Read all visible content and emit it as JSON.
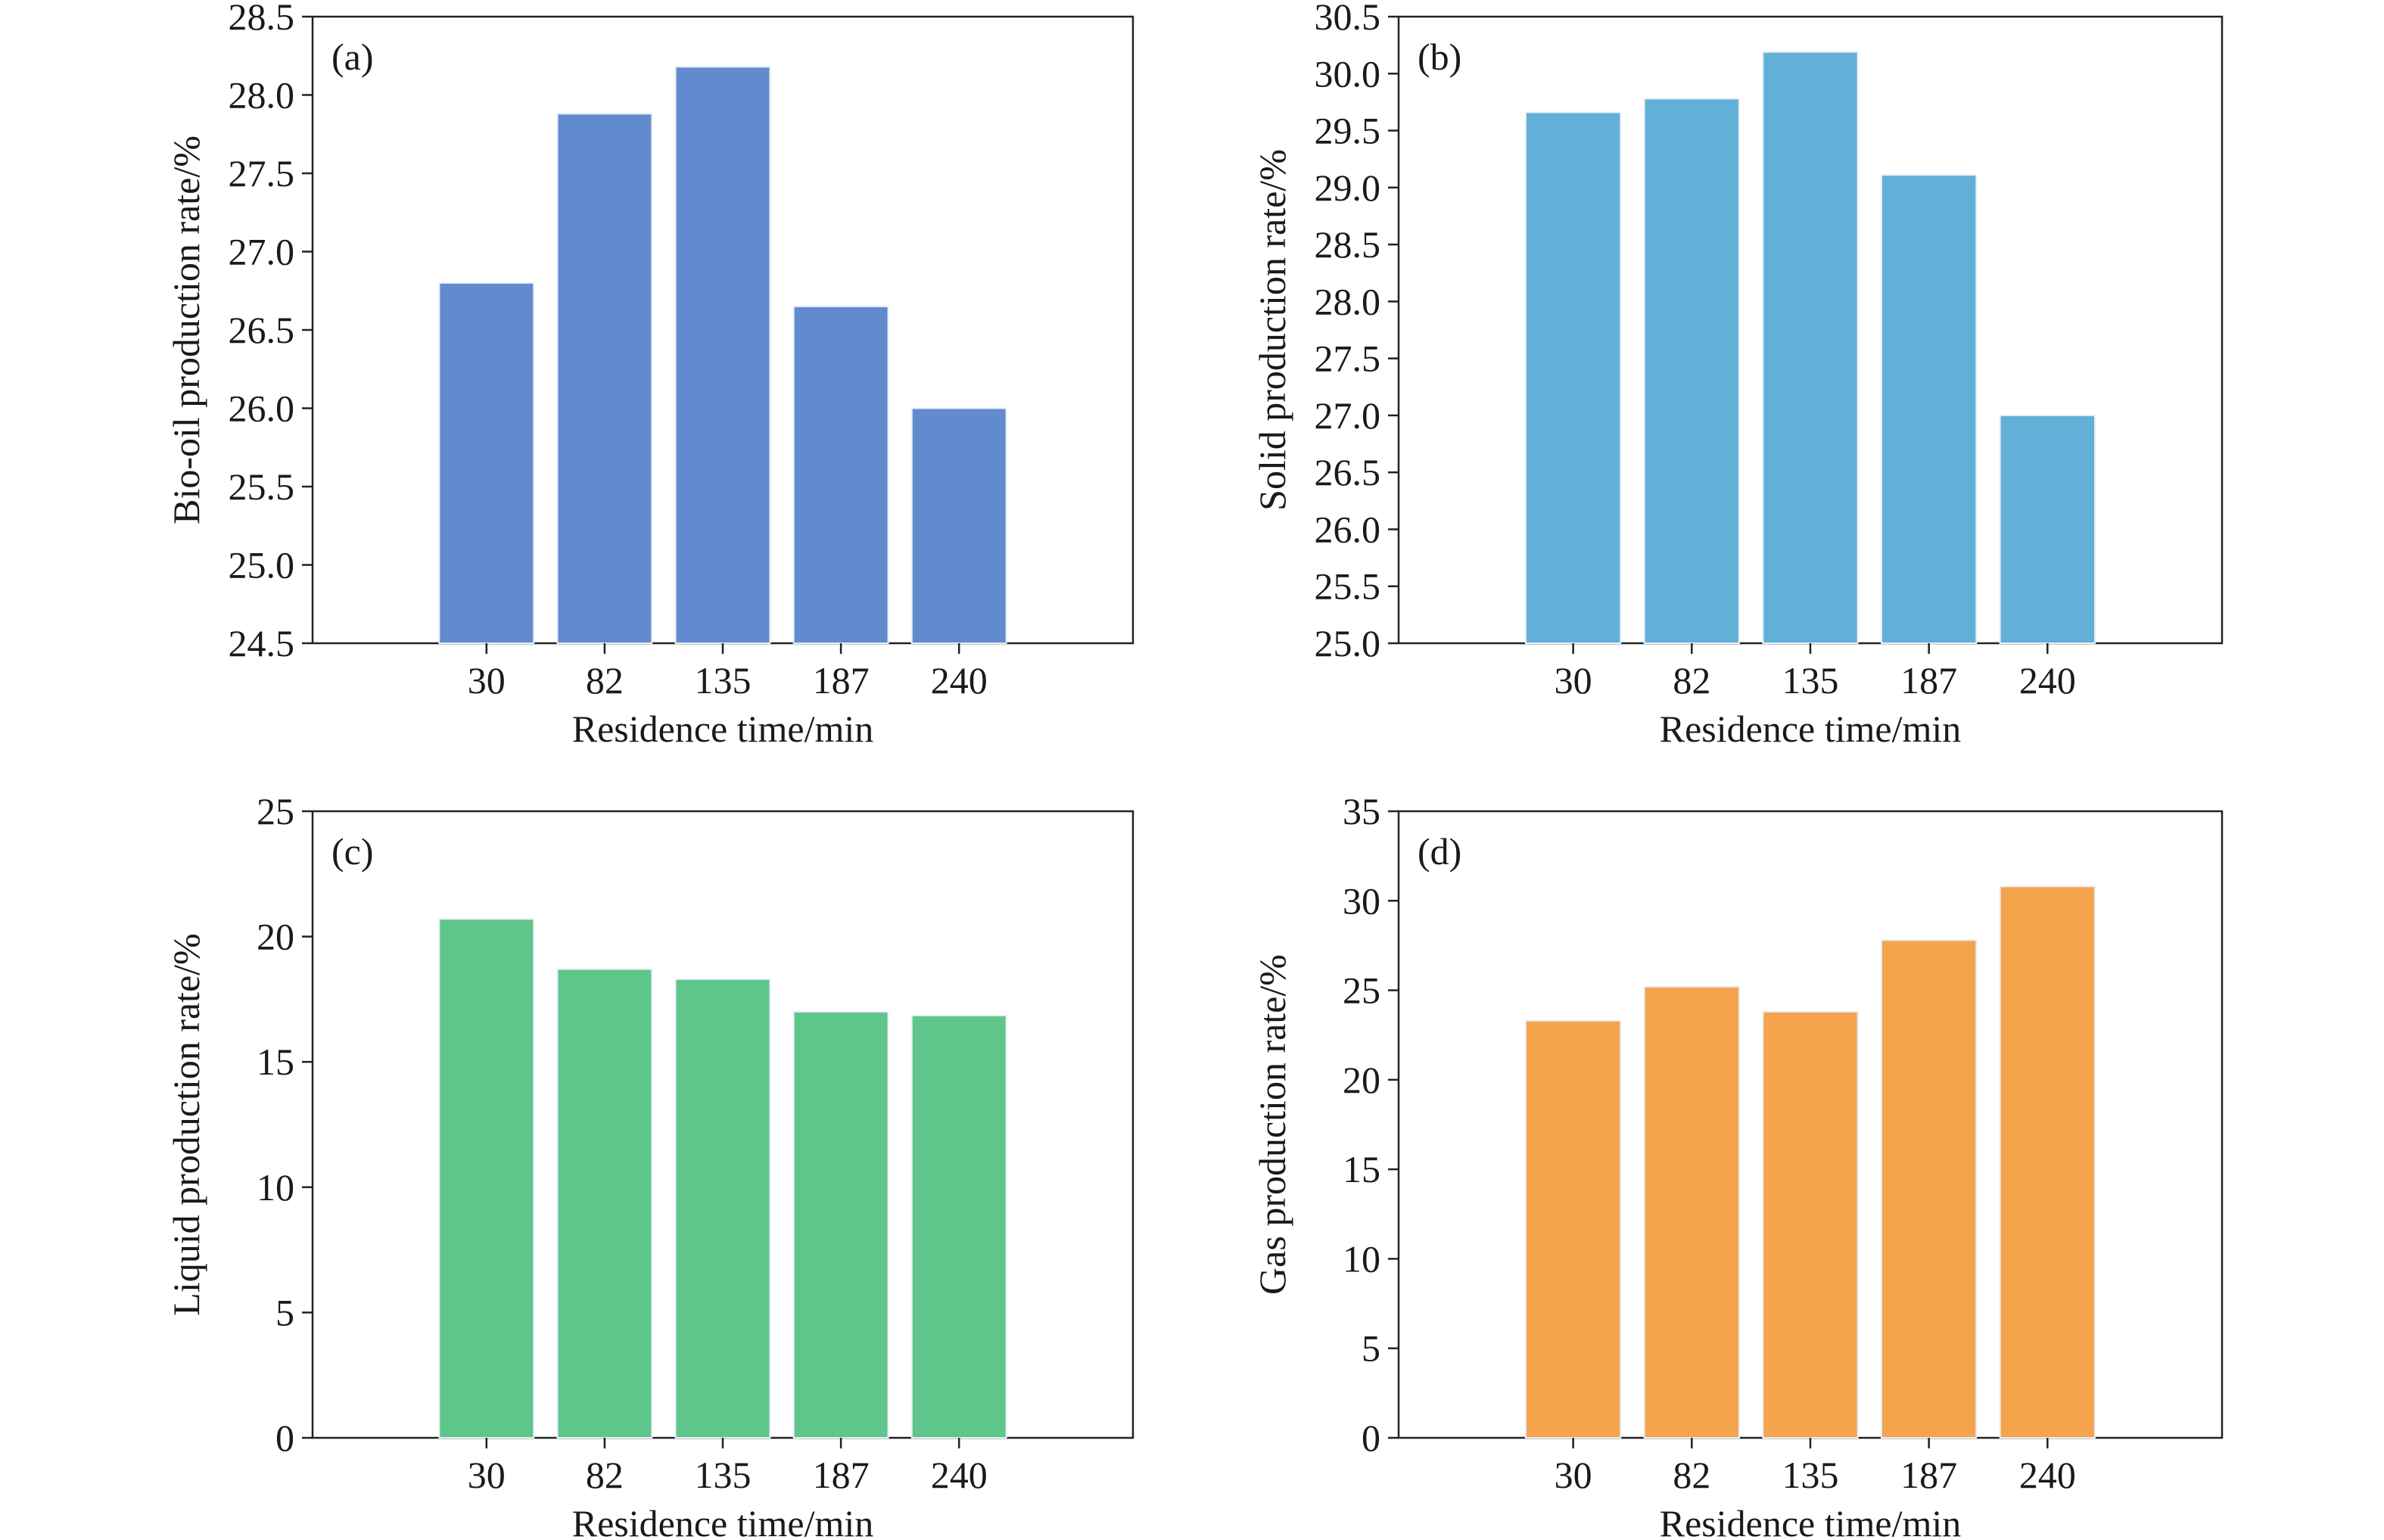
{
  "chart_data": [
    {
      "type": "bar",
      "panel_label": "(a)",
      "categories": [
        "30",
        "82",
        "135",
        "187",
        "240"
      ],
      "values": [
        26.8,
        27.88,
        28.18,
        26.65,
        26.0
      ],
      "xlabel": "Residence time/min",
      "ylabel": "Bio-oil production rate/%",
      "ylim": [
        24.5,
        28.5
      ],
      "yticks": [
        "24.5",
        "25.0",
        "25.5",
        "26.0",
        "26.5",
        "27.0",
        "27.5",
        "28.0",
        "28.5"
      ],
      "color": "#628bcf",
      "grid": false
    },
    {
      "type": "bar",
      "panel_label": "(b)",
      "categories": [
        "30",
        "82",
        "135",
        "187",
        "240"
      ],
      "values": [
        29.66,
        29.78,
        30.19,
        29.11,
        27.0
      ],
      "xlabel": "Residence time/min",
      "ylabel": "Solid production rate/%",
      "ylim": [
        25.0,
        30.5
      ],
      "yticks": [
        "25.0",
        "25.5",
        "26.0",
        "26.5",
        "27.0",
        "27.5",
        "28.0",
        "28.5",
        "29.0",
        "29.5",
        "30.0",
        "30.5"
      ],
      "color": "#62b0d8",
      "grid": false
    },
    {
      "type": "bar",
      "panel_label": "(c)",
      "categories": [
        "30",
        "82",
        "135",
        "187",
        "240"
      ],
      "values": [
        20.7,
        18.7,
        18.3,
        17.0,
        16.85
      ],
      "xlabel": "Residence time/min",
      "ylabel": "Liquid production rate/%",
      "ylim": [
        0,
        25
      ],
      "yticks": [
        "0",
        "5",
        "10",
        "15",
        "20",
        "25"
      ],
      "color": "#5ec68b",
      "grid": false
    },
    {
      "type": "bar",
      "panel_label": "(d)",
      "categories": [
        "30",
        "82",
        "135",
        "187",
        "240"
      ],
      "values": [
        23.3,
        25.2,
        23.8,
        27.8,
        30.8
      ],
      "xlabel": "Residence time/min",
      "ylabel": "Gas production rate/%",
      "ylim": [
        0,
        35
      ],
      "yticks": [
        "0",
        "5",
        "10",
        "15",
        "20",
        "25",
        "30",
        "35"
      ],
      "color": "#f4a44d",
      "grid": false
    }
  ]
}
